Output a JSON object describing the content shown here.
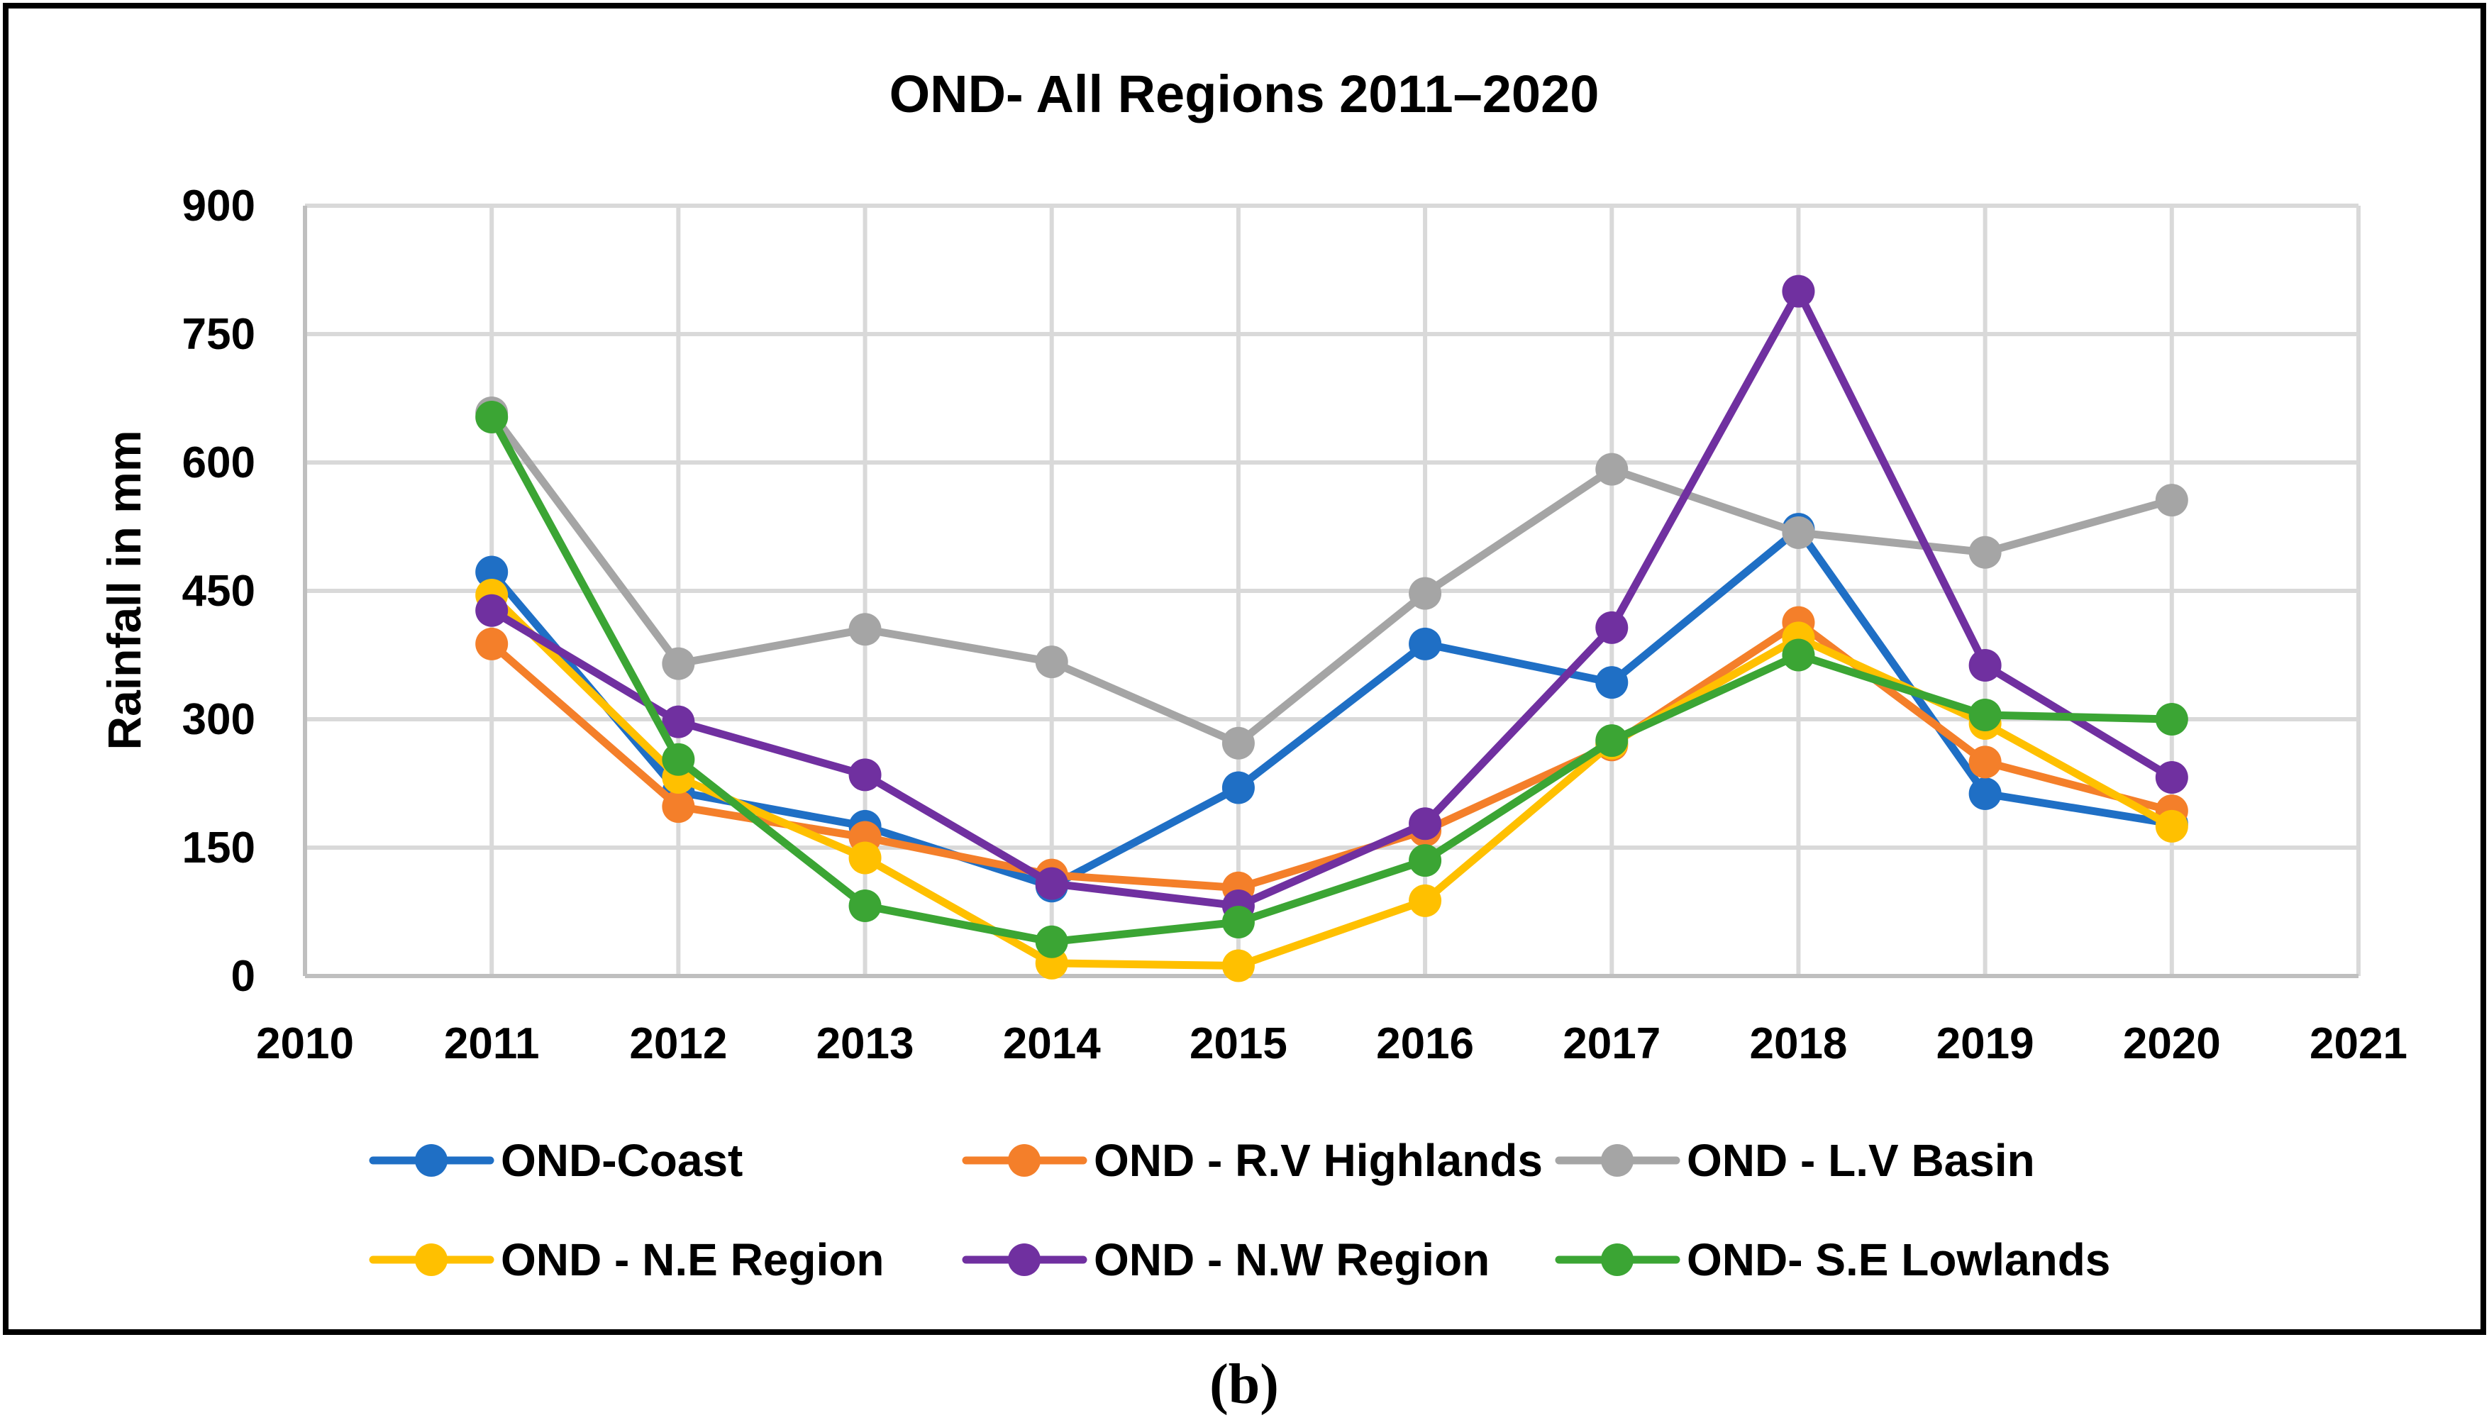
{
  "chart_data": {
    "type": "line",
    "title": "OND- All Regions 2011–2020",
    "xlabel": "",
    "ylabel": "Rainfall in mm",
    "xlim": [
      2010,
      2021
    ],
    "ylim": [
      0,
      900
    ],
    "xticks": [
      2010,
      2011,
      2012,
      2013,
      2014,
      2015,
      2016,
      2017,
      2018,
      2019,
      2020,
      2021
    ],
    "yticks": [
      0,
      150,
      300,
      450,
      600,
      750,
      900
    ],
    "grid": true,
    "legend_position": "bottom",
    "x": [
      2011,
      2012,
      2013,
      2014,
      2015,
      2016,
      2017,
      2018,
      2019,
      2020
    ],
    "series": [
      {
        "name": "OND-Coast",
        "color": "#1f6fc5",
        "values": [
          472,
          215,
          175,
          105,
          220,
          388,
          343,
          522,
          213,
          178
        ]
      },
      {
        "name": "OND - R.V Highlands",
        "color": "#f47f2a",
        "values": [
          388,
          198,
          162,
          118,
          103,
          170,
          270,
          413,
          250,
          193
        ]
      },
      {
        "name": "OND - L.V Basin",
        "color": "#a5a5a5",
        "values": [
          658,
          365,
          405,
          367,
          272,
          447,
          592,
          518,
          495,
          556
        ]
      },
      {
        "name": "OND - N.E Region",
        "color": "#ffc000",
        "values": [
          445,
          232,
          138,
          15,
          12,
          88,
          272,
          395,
          295,
          175
        ]
      },
      {
        "name": "OND - N.W Region",
        "color": "#7030a0",
        "values": [
          427,
          297,
          235,
          108,
          82,
          178,
          407,
          800,
          363,
          232
        ]
      },
      {
        "name": "OND- S.E Lowlands",
        "color": "#3ba534",
        "values": [
          653,
          253,
          82,
          40,
          63,
          135,
          275,
          375,
          305,
          300
        ]
      }
    ],
    "caption": "(b)"
  }
}
